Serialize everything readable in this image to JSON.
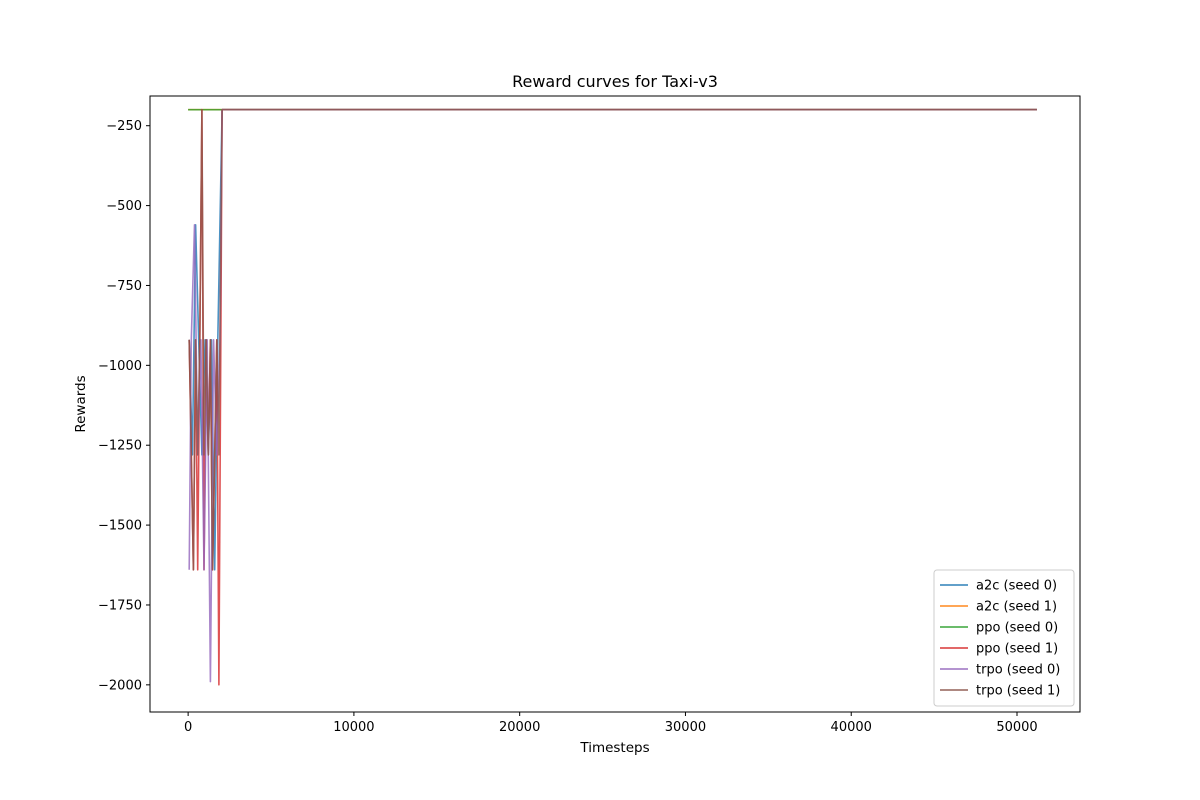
{
  "chart_data": {
    "type": "line",
    "title": "Reward curves for Taxi-v3",
    "xlabel": "Timesteps",
    "ylabel": "Rewards",
    "xlim": [
      -2300,
      53800
    ],
    "ylim": [
      -2085,
      -157
    ],
    "xticks": [
      0,
      10000,
      20000,
      30000,
      40000,
      50000
    ],
    "yticks": [
      -250,
      -500,
      -750,
      -1000,
      -1250,
      -1500,
      -1750,
      -2000
    ],
    "tick_labels_x": [
      "0",
      "10000",
      "20000",
      "30000",
      "40000",
      "50000"
    ],
    "tick_labels_y": [
      "−250",
      "−500",
      "−750",
      "−1000",
      "−1250",
      "−1500",
      "−1750",
      "−2000"
    ],
    "grid": false,
    "legend_position": "lower-right",
    "series": [
      {
        "name": "a2c (seed 0)",
        "color": "#1f77b4",
        "x": [
          64,
          256,
          448,
          640,
          832,
          1024,
          1216,
          1408,
          1600,
          1792,
          2048,
          51200
        ],
        "y": [
          -920,
          -1280,
          -560,
          -920,
          -1280,
          -920,
          -1280,
          -920,
          -1640,
          -920,
          -200,
          -200
        ]
      },
      {
        "name": "a2c (seed 1)",
        "color": "#ff7f0e",
        "x": [
          0,
          2048,
          51200
        ],
        "y": [
          -200,
          -200,
          -200
        ]
      },
      {
        "name": "ppo (seed 0)",
        "color": "#2ca02c",
        "x": [
          0,
          2048,
          51200
        ],
        "y": [
          -200,
          -200,
          -200
        ]
      },
      {
        "name": "ppo (seed 1)",
        "color": "#d62728",
        "x": [
          64,
          192,
          320,
          448,
          576,
          704,
          832,
          960,
          1088,
          1216,
          1344,
          1472,
          1600,
          1728,
          1856,
          2048,
          51200
        ],
        "y": [
          -920,
          -1280,
          -1640,
          -920,
          -1640,
          -920,
          -200,
          -1640,
          -920,
          -1280,
          -920,
          -1640,
          -1280,
          -920,
          -2000,
          -200,
          -200
        ]
      },
      {
        "name": "trpo (seed 0)",
        "color": "#9467bd",
        "x": [
          64,
          192,
          384,
          576,
          768,
          960,
          1152,
          1344,
          1536,
          1728,
          1920,
          2048,
          51200
        ],
        "y": [
          -1640,
          -920,
          -560,
          -1280,
          -920,
          -1640,
          -920,
          -1990,
          -920,
          -1280,
          -920,
          -200,
          -200
        ]
      },
      {
        "name": "trpo (seed 1)",
        "color": "#8c564b",
        "x": [
          64,
          192,
          320,
          448,
          576,
          704,
          832,
          960,
          1088,
          1216,
          1344,
          1472,
          1600,
          1728,
          1856,
          2048,
          51200
        ],
        "y": [
          -920,
          -1280,
          -1640,
          -920,
          -1280,
          -920,
          -200,
          -1280,
          -920,
          -1280,
          -920,
          -1640,
          -1280,
          -920,
          -1280,
          -200,
          -200
        ]
      }
    ]
  }
}
